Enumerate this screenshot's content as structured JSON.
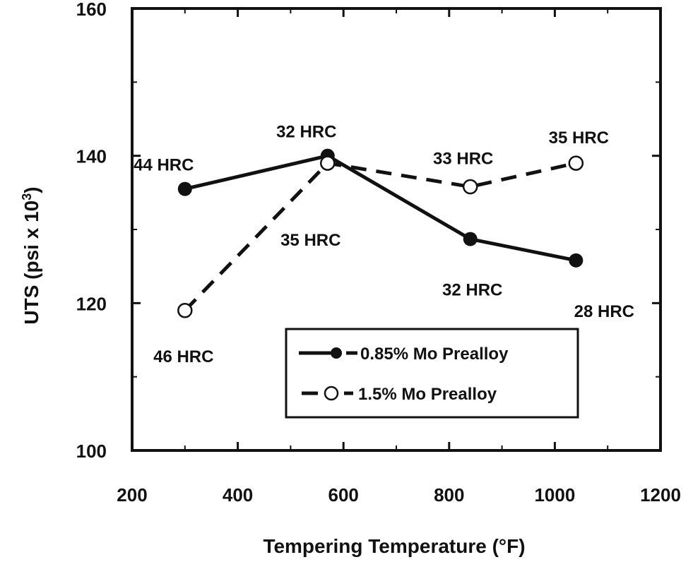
{
  "chart_data": {
    "type": "line",
    "title": "",
    "xlabel": "Tempering Temperature (°F)",
    "ylabel": "UTS (psi x 10",
    "ylabel_sup": "3",
    "ylabel_close": ")",
    "xlim": [
      200,
      1200
    ],
    "ylim": [
      100,
      160
    ],
    "xticks": [
      200,
      400,
      600,
      800,
      1000,
      1200
    ],
    "yticks": [
      100,
      120,
      140,
      160
    ],
    "grid": false,
    "legend_position": "lower-right",
    "series": [
      {
        "name": "0.85% Mo Prealloy",
        "marker": "filled-circle",
        "line": "solid",
        "x": [
          300,
          570,
          840,
          1040
        ],
        "y": [
          135.5,
          140,
          128.7,
          125.8
        ],
        "labels": [
          "44 HRC",
          "32 HRC",
          "32 HRC",
          "28 HRC"
        ]
      },
      {
        "name": "1.5% Mo Prealloy",
        "marker": "open-circle",
        "line": "dashed",
        "x": [
          300,
          570,
          840,
          1040
        ],
        "y": [
          119,
          139,
          135.8,
          139
        ],
        "labels": [
          "46 HRC",
          "35 HRC",
          "33 HRC",
          "35 HRC"
        ]
      }
    ]
  },
  "legend": {
    "item1": "0.85% Mo Prealloy",
    "item2": "1.5% Mo Prealloy"
  }
}
